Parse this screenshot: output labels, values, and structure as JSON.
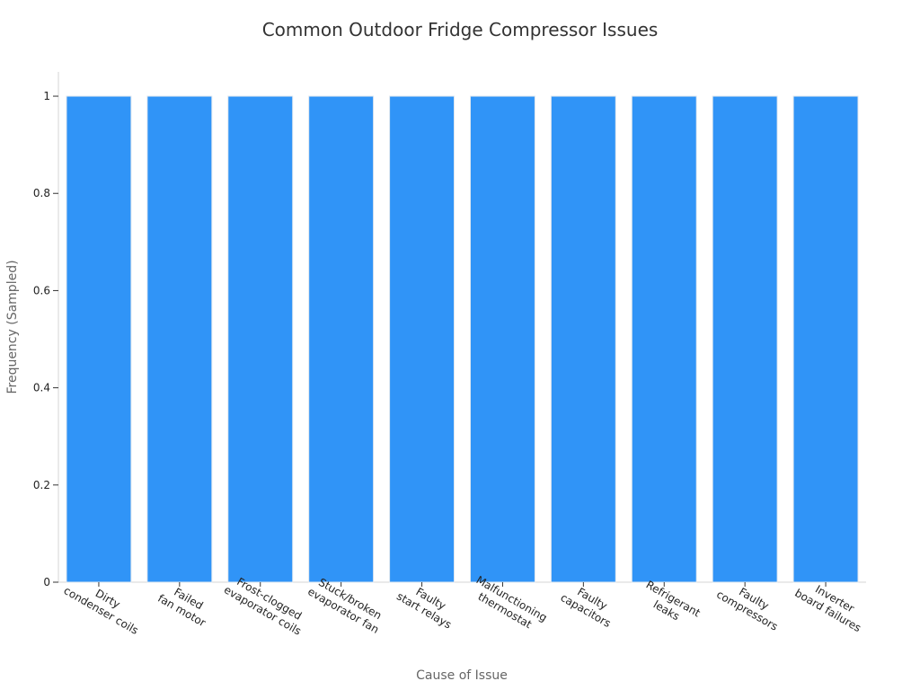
{
  "chart_data": {
    "type": "bar",
    "title": "Common Outdoor Fridge Compressor Issues",
    "xlabel": "Cause of Issue",
    "ylabel": "Frequency (Sampled)",
    "ylim": [
      0,
      1.05
    ],
    "yticks": [
      0,
      0.2,
      0.4,
      0.6,
      0.8,
      1
    ],
    "ytick_labels": [
      "0",
      "0.2",
      "0.4",
      "0.6",
      "0.8",
      "1"
    ],
    "grid": false,
    "legend": "none",
    "bar_color": "#3094f7",
    "categories": [
      [
        "Dirty",
        "condenser coils"
      ],
      [
        "Failed",
        "fan motor"
      ],
      [
        "Frost-clogged",
        "evaporator coils"
      ],
      [
        "Stuck/broken",
        "evaporator fan"
      ],
      [
        "Faulty",
        "start relays"
      ],
      [
        "Malfunctioning",
        "thermostat"
      ],
      [
        "Faulty",
        "capacitors"
      ],
      [
        "Refrigerant",
        "leaks"
      ],
      [
        "Faulty",
        "compressors"
      ],
      [
        "Inverter",
        "board failures"
      ]
    ],
    "values": [
      1,
      1,
      1,
      1,
      1,
      1,
      1,
      1,
      1,
      1
    ]
  }
}
